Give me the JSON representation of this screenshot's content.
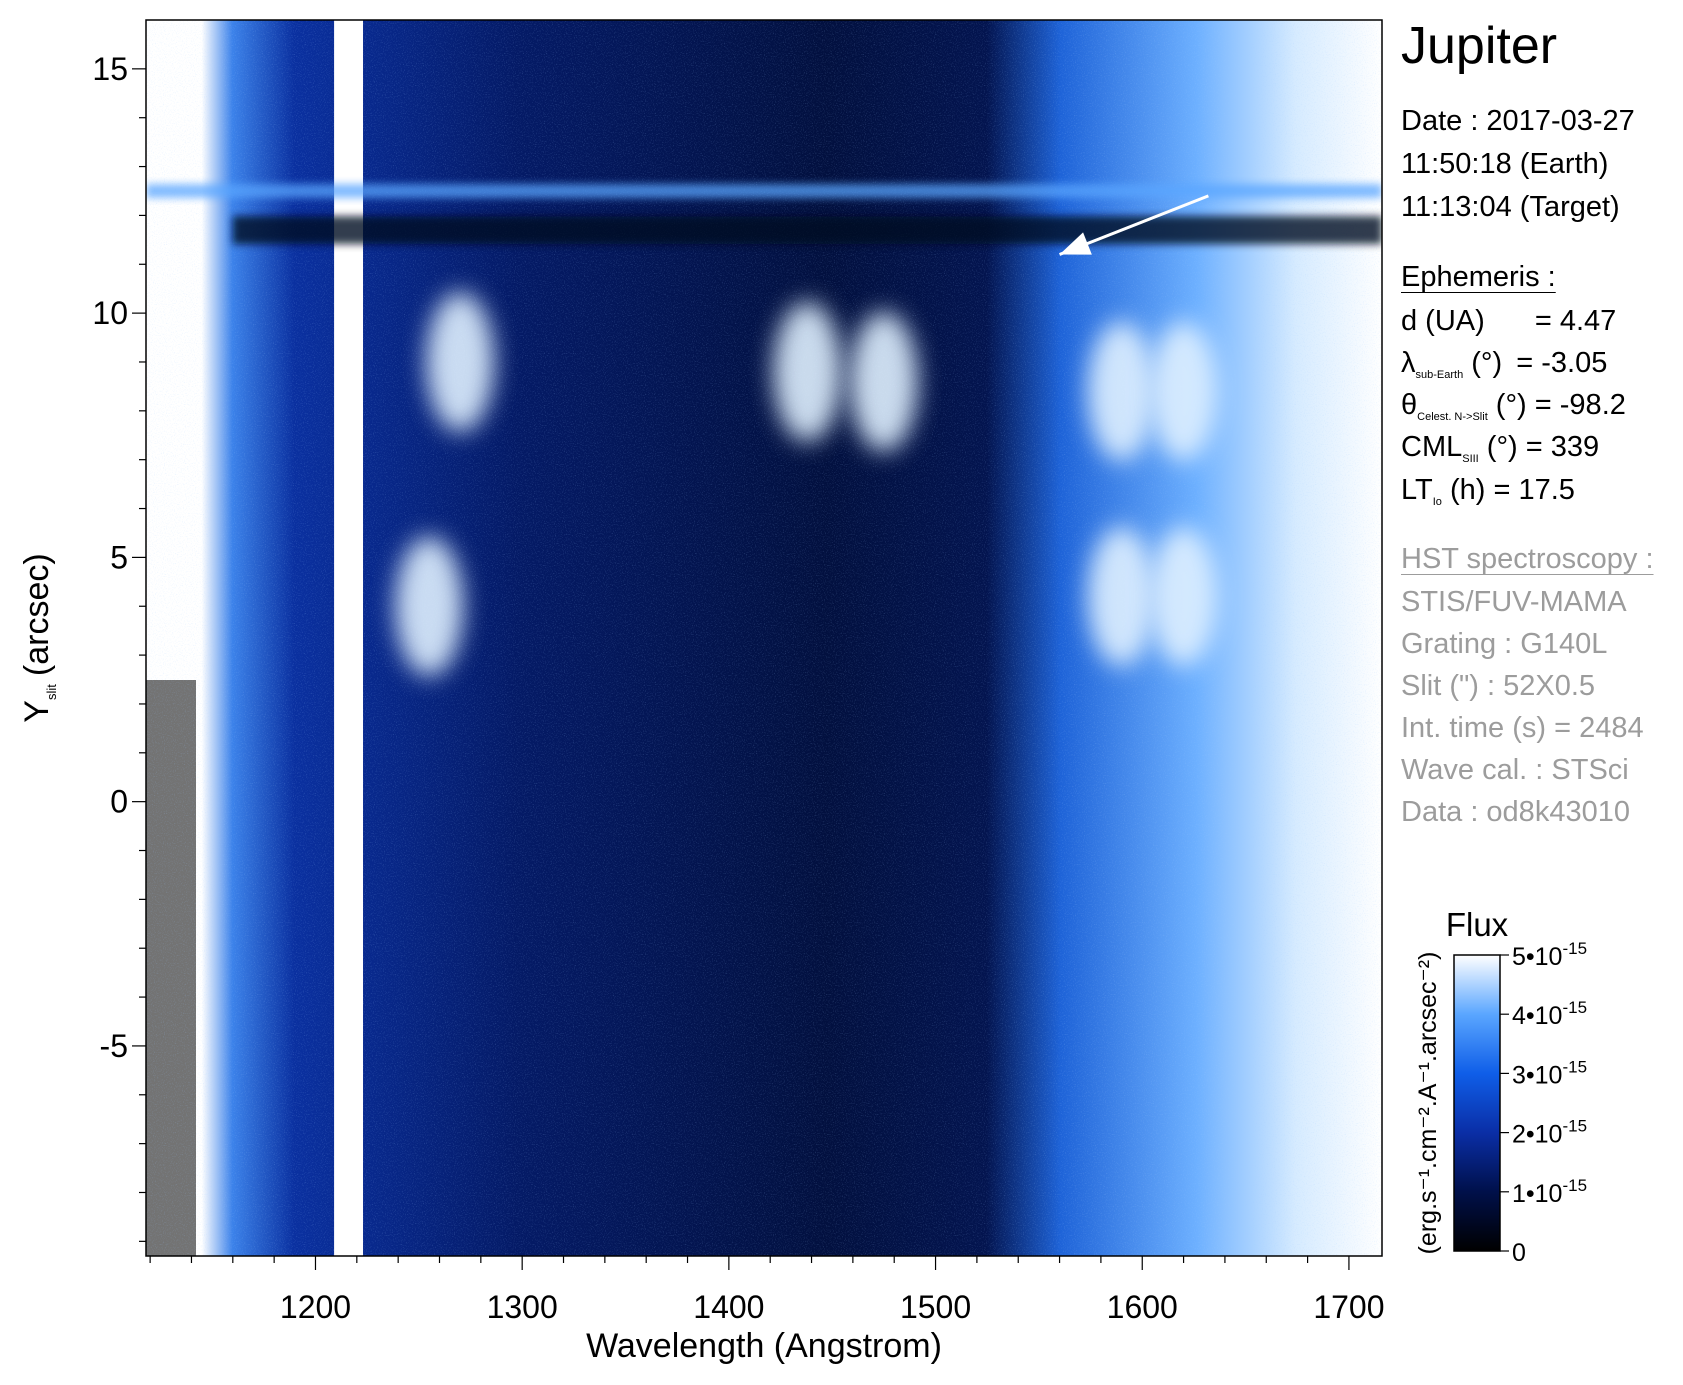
{
  "chart_data": {
    "type": "heatmap",
    "title": "",
    "xlabel": "Wavelength (Angstrom)",
    "ylabel_main": "Y",
    "ylabel_sub": "slit",
    "ylabel_unit": "(arcsec)",
    "xlim": [
      1118,
      1716
    ],
    "ylim": [
      -9.3,
      16.0
    ],
    "x_ticks": [
      1200,
      1300,
      1400,
      1500,
      1600,
      1700
    ],
    "y_ticks": [
      -5,
      0,
      5,
      10,
      15
    ],
    "x_tick_labels": [
      "1200",
      "1300",
      "1400",
      "1500",
      "1600",
      "1700"
    ],
    "y_tick_labels": [
      "-5",
      "0",
      "5",
      "10",
      "15"
    ],
    "arrow": {
      "from": [
        1632,
        12.4
      ],
      "to": [
        1560,
        11.2
      ]
    },
    "features": {
      "lyman_alpha_column": {
        "x": [
          1209,
          1223
        ]
      },
      "bright_row": {
        "y": 12.5
      },
      "dark_row": {
        "y": 11.7
      },
      "emission_blobs": [
        {
          "x": 1255,
          "y": 4.0
        },
        {
          "x": 1270,
          "y": 9.0
        },
        {
          "x": 1438,
          "y": 8.8
        },
        {
          "x": 1475,
          "y": 8.6
        },
        {
          "x": 1590,
          "y": 8.4
        },
        {
          "x": 1620,
          "y": 8.4
        },
        {
          "x": 1590,
          "y": 4.2
        },
        {
          "x": 1620,
          "y": 4.2
        }
      ]
    },
    "colorbar": {
      "title": "Flux",
      "unit_label": "(erg.s⁻¹.cm⁻².A⁻¹.arcsec⁻²)",
      "range": [
        0,
        5e-15
      ],
      "ticks": [
        0,
        1e-15,
        2e-15,
        3e-15,
        4e-15,
        5e-15
      ],
      "tick_labels": [
        {
          "base": "0",
          "exp": ""
        },
        {
          "base": "1•10",
          "exp": "-15"
        },
        {
          "base": "2•10",
          "exp": "-15"
        },
        {
          "base": "3•10",
          "exp": "-15"
        },
        {
          "base": "4•10",
          "exp": "-15"
        },
        {
          "base": "5•10",
          "exp": "-15"
        }
      ],
      "colors": [
        "#000000",
        "#00104a",
        "#0a2ea6",
        "#0f5ee8",
        "#5aa6ff",
        "#ffffff"
      ]
    }
  },
  "panel": {
    "target": "Jupiter",
    "date_line": "Date : 2017-03-27",
    "time_earth": "11:50:18 (Earth)",
    "time_target": "11:13:04 (Target)",
    "ephemeris_title": "Ephemeris :",
    "distance": {
      "label": "d (UA)",
      "value": "= 4.47"
    },
    "sub_earth_lat": {
      "symbol": "λ",
      "sub": "sub-Earth",
      "unit": " (°)",
      "value": "= -3.05"
    },
    "theta": {
      "symbol": "θ",
      "sub": "Celest. N->Slit",
      "unit": " (°)",
      "value": "= -98.2"
    },
    "cml": {
      "symbol": "CML",
      "sub": "SIII",
      "unit": " (°)",
      "value": "= 339"
    },
    "lt_io": {
      "symbol": "LT",
      "sub": "Io",
      "unit": " (h)",
      "value": "= 17.5"
    },
    "hst_title": "HST spectroscopy :",
    "instrument": "STIS/FUV-MAMA",
    "grating": "Grating : G140L",
    "slit": "Slit (\") : 52X0.5",
    "int_time": "Int. time (s) = 2484",
    "wave_cal": "Wave cal. : STSci",
    "dataset": "Data : od8k43010"
  },
  "colors": {
    "text": "#000000",
    "grey_text": "#9c9c9c",
    "arrow": "#ffffff"
  }
}
